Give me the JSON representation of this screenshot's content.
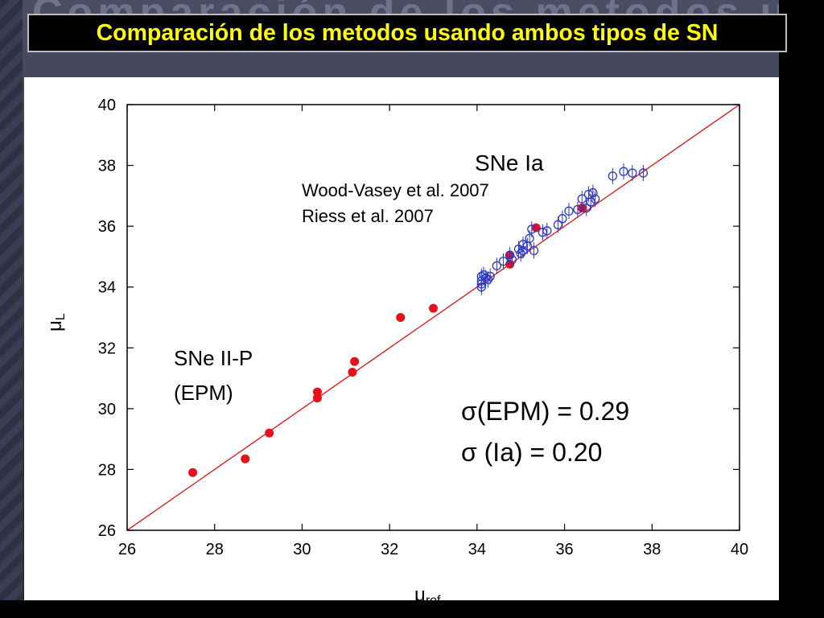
{
  "slide": {
    "title": "Comparación de los metodos usando ambos tipos de SN"
  },
  "chart_data": {
    "type": "scatter",
    "xlabel_symbol": "μ",
    "xlabel_sub": "ref",
    "ylabel_symbol": "μ",
    "ylabel_sub": "L",
    "xlim": [
      26,
      40
    ],
    "ylim": [
      26,
      40
    ],
    "xticks": [
      26,
      28,
      30,
      32,
      34,
      36,
      38,
      40
    ],
    "yticks": [
      26,
      28,
      30,
      32,
      34,
      36,
      38,
      40
    ],
    "line": {
      "x": [
        26,
        40
      ],
      "y": [
        26,
        40
      ],
      "color": "#e02020"
    },
    "series": [
      {
        "label": "SNe II-P (EPM)",
        "color": "#e8101a",
        "marker": "filled-circle",
        "points": [
          [
            27.5,
            27.9
          ],
          [
            28.7,
            28.35
          ],
          [
            29.25,
            29.2
          ],
          [
            30.35,
            30.55
          ],
          [
            30.35,
            30.35
          ],
          [
            31.15,
            31.2
          ],
          [
            31.2,
            31.55
          ],
          [
            32.25,
            33.0
          ],
          [
            33.0,
            33.3
          ],
          [
            34.75,
            35.05
          ],
          [
            34.75,
            34.75
          ],
          [
            35.35,
            35.95
          ],
          [
            36.4,
            36.6
          ]
        ]
      },
      {
        "label": "SNe Ia",
        "color": "#2a36c8",
        "marker": "open-circle",
        "points": [
          [
            34.1,
            34.0
          ],
          [
            34.1,
            34.1
          ],
          [
            34.1,
            34.2
          ],
          [
            34.1,
            34.35
          ],
          [
            34.2,
            34.3
          ],
          [
            34.15,
            34.4
          ],
          [
            34.25,
            34.25
          ],
          [
            34.3,
            34.35
          ],
          [
            34.45,
            34.7
          ],
          [
            34.6,
            34.85
          ],
          [
            34.8,
            34.9
          ],
          [
            34.75,
            35.05
          ],
          [
            34.95,
            35.25
          ],
          [
            35.0,
            35.1
          ],
          [
            35.05,
            35.2
          ],
          [
            35.15,
            35.35
          ],
          [
            35.05,
            35.4
          ],
          [
            35.2,
            35.6
          ],
          [
            35.3,
            35.2
          ],
          [
            35.25,
            35.9
          ],
          [
            35.5,
            35.8
          ],
          [
            35.6,
            35.85
          ],
          [
            35.85,
            36.05
          ],
          [
            35.95,
            36.25
          ],
          [
            36.1,
            36.5
          ],
          [
            36.3,
            36.55
          ],
          [
            36.4,
            36.9
          ],
          [
            36.55,
            37.05
          ],
          [
            36.65,
            37.1
          ],
          [
            36.6,
            36.8
          ],
          [
            36.7,
            36.9
          ],
          [
            36.5,
            36.6
          ],
          [
            37.1,
            37.65
          ],
          [
            37.35,
            37.8
          ],
          [
            37.55,
            37.75
          ],
          [
            37.8,
            37.75
          ]
        ]
      }
    ],
    "annotations": {
      "snia_title": "SNe Ia",
      "snia_ref1": "Wood-Vasey et al. 2007",
      "snia_ref2": "Riess et al. 2007",
      "snii_line1": "SNe II-P",
      "snii_line2": "(EPM)",
      "sigma_epm": "σ(EPM) = 0.29",
      "sigma_ia": "σ (Ia) = 0.20"
    }
  }
}
